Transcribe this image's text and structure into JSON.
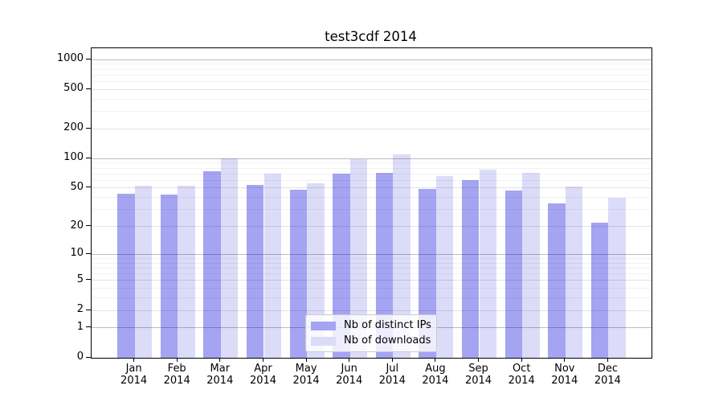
{
  "title": "test3cdf 2014",
  "colors": {
    "bar_distinct_ips": "#a4a4f2",
    "bar_downloads": "#dcdcf9",
    "axis": "#000000",
    "legend_border": "#cccccc",
    "gridline_power10": "#bdbdbd",
    "gridline_minor": "#f1f1f1"
  },
  "chart_data": {
    "type": "bar",
    "title": "test3cdf 2014",
    "categories": [
      "Jan",
      "Feb",
      "Mar",
      "Apr",
      "May",
      "Jun",
      "Jul",
      "Aug",
      "Sep",
      "Oct",
      "Nov",
      "Dec"
    ],
    "year": "2014",
    "series": [
      {
        "name": "Nb of distinct IPs",
        "color": "#a4a4f2",
        "values": [
          44,
          43,
          75,
          54,
          48,
          70,
          71,
          49,
          60,
          47,
          35,
          22
        ]
      },
      {
        "name": "Nb of downloads",
        "color": "#dcdcf9",
        "values": [
          53,
          53,
          100,
          70,
          56,
          98,
          110,
          66,
          78,
          71,
          52,
          40
        ]
      }
    ],
    "yscale": "log10(1+value), 0 at baseline",
    "yticks": [
      0,
      1,
      2,
      5,
      10,
      20,
      50,
      100,
      200,
      500,
      1000
    ],
    "ylim": [
      0,
      1290
    ],
    "xlabel": "",
    "ylabel": "",
    "grid": true,
    "legend_position": "lower center"
  }
}
